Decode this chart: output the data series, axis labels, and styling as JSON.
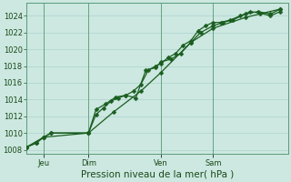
{
  "xlabel": "Pression niveau de la mer( hPa )",
  "bg_color": "#cce8e0",
  "plot_bg_color": "#cce8e0",
  "grid_color": "#a8cccc",
  "line_color": "#1a5e20",
  "ylim": [
    1007.5,
    1025.5
  ],
  "yticks": [
    1008,
    1010,
    1012,
    1014,
    1016,
    1018,
    1020,
    1022,
    1024
  ],
  "xlim": [
    0.0,
    1.05
  ],
  "day_positions": [
    0.07,
    0.25,
    0.54,
    0.75
  ],
  "day_labels": [
    "Jeu",
    "Dim",
    "Ven",
    "Sam"
  ],
  "series1_x": [
    0.0,
    0.04,
    0.07,
    0.1,
    0.25,
    0.28,
    0.31,
    0.34,
    0.37,
    0.4,
    0.43,
    0.46,
    0.49,
    0.52,
    0.54,
    0.57,
    0.6,
    0.63,
    0.66,
    0.69,
    0.72,
    0.75,
    0.78,
    0.82,
    0.86,
    0.9,
    0.94,
    0.98,
    1.02
  ],
  "series1_y": [
    1008.3,
    1008.8,
    1009.5,
    1010.0,
    1010.0,
    1012.2,
    1013.0,
    1013.8,
    1014.2,
    1014.5,
    1015.0,
    1015.8,
    1017.5,
    1018.0,
    1018.3,
    1019.0,
    1019.5,
    1020.5,
    1021.0,
    1022.2,
    1022.8,
    1023.2,
    1023.2,
    1023.5,
    1024.0,
    1024.5,
    1024.3,
    1024.0,
    1024.5
  ],
  "series2_x": [
    0.0,
    0.04,
    0.07,
    0.1,
    0.25,
    0.28,
    0.32,
    0.36,
    0.4,
    0.44,
    0.48,
    0.52,
    0.54,
    0.58,
    0.62,
    0.66,
    0.7,
    0.75,
    0.79,
    0.83,
    0.88,
    0.93,
    0.98,
    1.02
  ],
  "series2_y": [
    1008.3,
    1008.8,
    1009.5,
    1010.0,
    1010.0,
    1012.8,
    1013.5,
    1014.3,
    1014.5,
    1014.2,
    1017.5,
    1017.8,
    1018.5,
    1018.8,
    1019.5,
    1020.8,
    1022.0,
    1022.8,
    1023.2,
    1023.5,
    1024.2,
    1024.5,
    1024.2,
    1024.8
  ],
  "series3_x": [
    0.0,
    0.07,
    0.25,
    0.35,
    0.46,
    0.54,
    0.66,
    0.75,
    0.88,
    1.02
  ],
  "series3_y": [
    1008.3,
    1009.5,
    1010.0,
    1012.5,
    1015.0,
    1017.2,
    1020.8,
    1022.5,
    1023.8,
    1024.8
  ],
  "marker_size": 2.5,
  "line_width": 0.9,
  "xlabel_fontsize": 7.5,
  "tick_fontsize": 6.0
}
